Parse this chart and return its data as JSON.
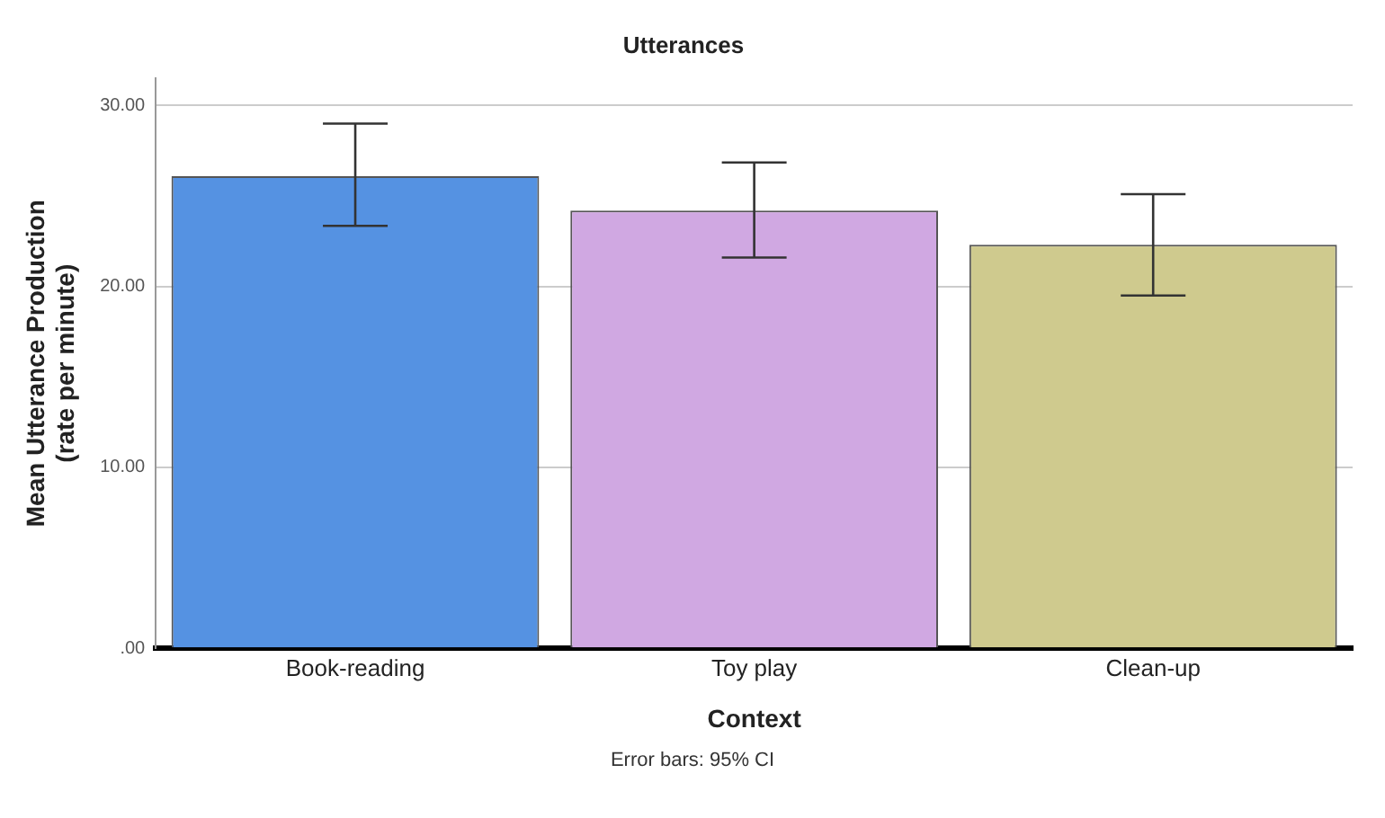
{
  "chart_data": {
    "type": "bar",
    "title": "Utterances",
    "xlabel": "Context",
    "ylabel": "Mean Utterance Production\n(rate per minute)",
    "categories": [
      "Book-reading",
      "Toy play",
      "Clean-up"
    ],
    "values": [
      26.1,
      24.2,
      22.3
    ],
    "colors": [
      "#5592e2",
      "#d0a8e2",
      "#cfca8e"
    ],
    "errors": [
      [
        23.35,
        29.0
      ],
      [
        21.6,
        26.85
      ],
      [
        19.5,
        25.1
      ]
    ],
    "ylim": [
      0,
      31.5
    ],
    "yticks": [
      {
        "value": 0,
        "label": ".00"
      },
      {
        "value": 10,
        "label": "10.00"
      },
      {
        "value": 20,
        "label": "20.00"
      },
      {
        "value": 30,
        "label": "30.00"
      }
    ],
    "grid": "y",
    "annotations": [
      "Error bars: 95% CI"
    ]
  }
}
